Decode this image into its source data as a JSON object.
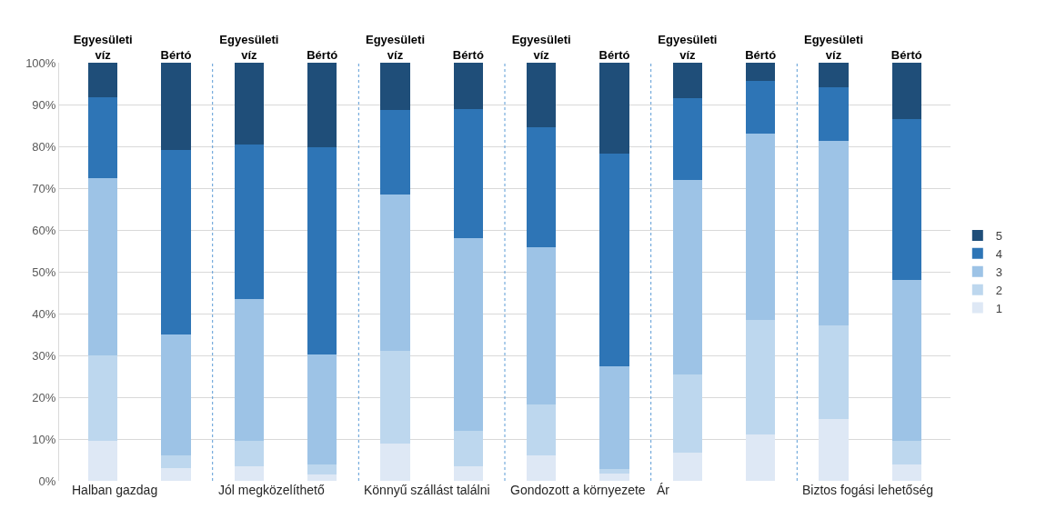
{
  "chart_data": {
    "type": "bar",
    "stacked": true,
    "categories": [
      "Egyesületi víz",
      "Bértó",
      "Egyesületi víz",
      "Bértó",
      "Egyesületi víz",
      "Bértó",
      "Egyesületi víz",
      "Bértó",
      "Egyesületi víz",
      "Bértó",
      "Egyesületi víz",
      "Bértó"
    ],
    "series": [
      {
        "name": "1",
        "color": "#dee8f5",
        "values": [
          9.5,
          3,
          3.5,
          1.5,
          9,
          3.5,
          6,
          1.8,
          6.8,
          11,
          14.8,
          4
        ]
      },
      {
        "name": "2",
        "color": "#bdd7ee",
        "values": [
          20.5,
          3,
          6,
          2.5,
          22,
          8.5,
          12.2,
          1,
          18.7,
          27.5,
          22.4,
          5.5
        ]
      },
      {
        "name": "3",
        "color": "#9dc3e6",
        "values": [
          42.5,
          29,
          34,
          26.2,
          37.5,
          46,
          37.6,
          24.7,
          46.5,
          44.5,
          44,
          38.5
        ]
      },
      {
        "name": "4",
        "color": "#2e75b6",
        "values": [
          19.3,
          44.2,
          37,
          49.6,
          20.3,
          31,
          28.8,
          50.7,
          19.6,
          12.6,
          13,
          38.6
        ]
      },
      {
        "name": "5",
        "color": "#1f4e79",
        "values": [
          8.2,
          20.8,
          19.5,
          20.2,
          11.2,
          11,
          15.4,
          21.8,
          8.4,
          4.4,
          5.8,
          13.4
        ]
      }
    ],
    "ylim": [
      0,
      100
    ],
    "yticks": [
      {
        "value": 0,
        "label": "0%"
      },
      {
        "value": 10,
        "label": "10%"
      },
      {
        "value": 20,
        "label": "20%"
      },
      {
        "value": 30,
        "label": "30%"
      },
      {
        "value": 40,
        "label": "40%"
      },
      {
        "value": 50,
        "label": "50%"
      },
      {
        "value": 60,
        "label": "60%"
      },
      {
        "value": 70,
        "label": "70%"
      },
      {
        "value": 80,
        "label": "80%"
      },
      {
        "value": 90,
        "label": "90%"
      },
      {
        "value": 100,
        "label": "100%"
      }
    ],
    "grid": "y",
    "legend": "right",
    "annotations": [
      "Halban gazdag",
      "Jól megközelíthető",
      "Könnyű szállást találni",
      "Gondozott a környezete",
      "Ár",
      "Biztos fogási lehetőség"
    ]
  }
}
